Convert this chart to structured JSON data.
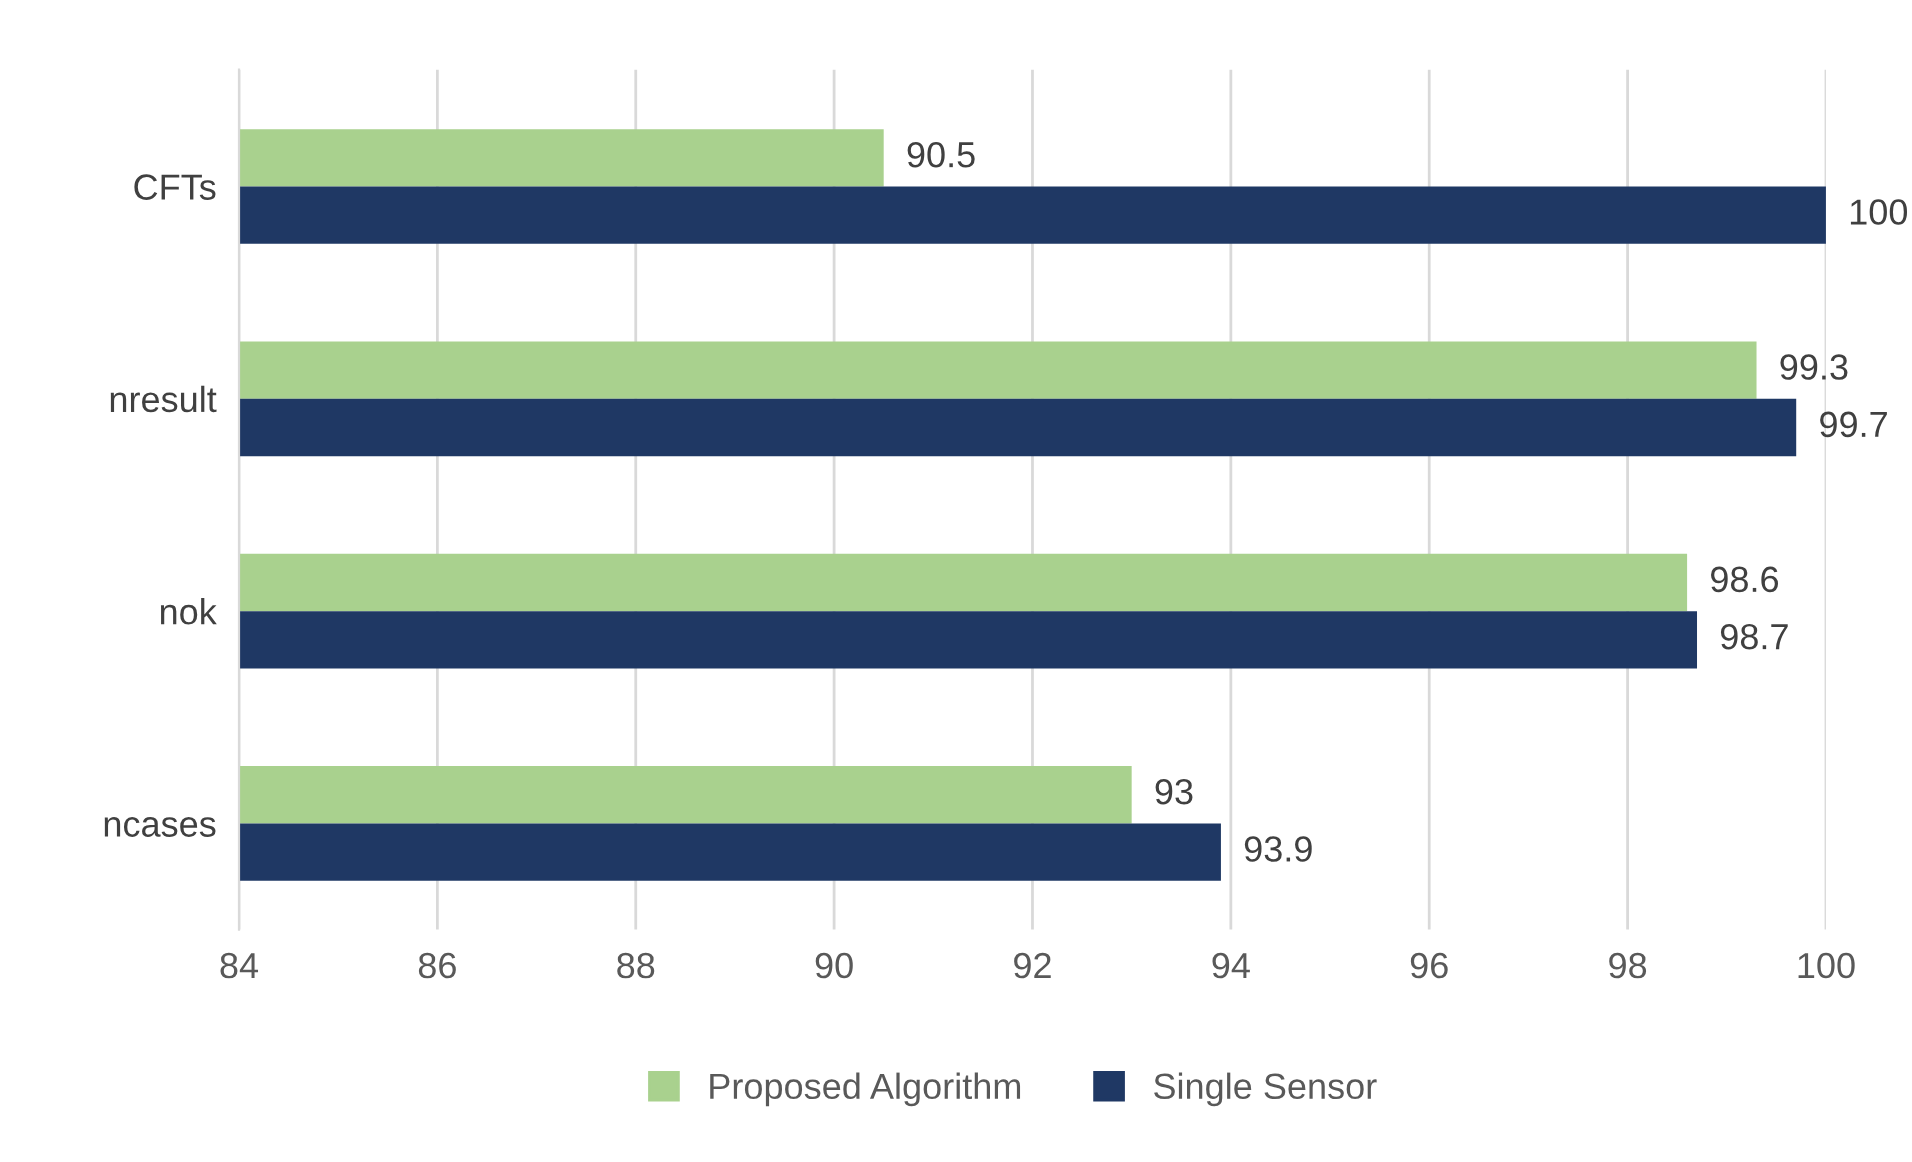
{
  "chart_data": {
    "type": "bar",
    "orientation": "horizontal",
    "categories": [
      "CFTs",
      "nresult",
      "nok",
      "ncases"
    ],
    "series": [
      {
        "name": "Proposed Algorithm",
        "color": "#a9d18e",
        "values": [
          90.5,
          99.3,
          98.6,
          93
        ]
      },
      {
        "name": "Single Sensor",
        "color": "#1f3864",
        "values": [
          100,
          99.7,
          98.7,
          93.9
        ]
      }
    ],
    "xlim": [
      84,
      100
    ],
    "xticks": [
      84,
      86,
      88,
      90,
      92,
      94,
      96,
      98,
      100
    ],
    "grid": "x",
    "legend": "bottom",
    "data_labels": true
  }
}
